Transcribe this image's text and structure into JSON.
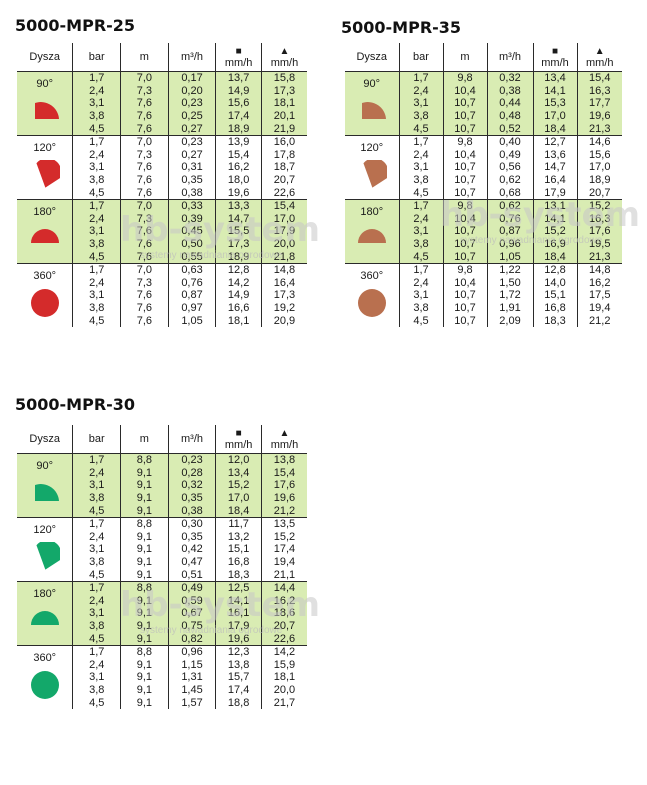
{
  "header_labels": {
    "nozzle": "Dysza",
    "pressure": "bar",
    "radius": "m",
    "flow": "m³/h",
    "square_symbol": "■",
    "triangle_symbol": "▲",
    "precip_unit": "mm/h"
  },
  "watermark": {
    "logo": "hb-system",
    "subtitle": "systemy nawadniania ogrodowe"
  },
  "colors": {
    "green_row": "#d9ecb3",
    "red_nozzle": "#d42b2b",
    "brown_nozzle": "#b9704f",
    "green_nozzle": "#13a86a"
  },
  "tables": [
    {
      "title": "5000-MPR-25",
      "nozzle_color": "#d42b2b",
      "groups": [
        {
          "nozzle": "90°",
          "shape": "quarter",
          "rows": [
            [
              "1,7",
              "7,0",
              "0,17",
              "13,7",
              "15,8"
            ],
            [
              "2,4",
              "7,3",
              "0,20",
              "14,9",
              "17,3"
            ],
            [
              "3,1",
              "7,6",
              "0,23",
              "15,6",
              "18,1"
            ],
            [
              "3,8",
              "7,6",
              "0,25",
              "17,4",
              "20,1"
            ],
            [
              "4,5",
              "7,6",
              "0,27",
              "18,9",
              "21,9"
            ]
          ]
        },
        {
          "nozzle": "120°",
          "shape": "third",
          "rows": [
            [
              "1,7",
              "7,0",
              "0,23",
              "13,9",
              "16,0"
            ],
            [
              "2,4",
              "7,3",
              "0,27",
              "15,4",
              "17,8"
            ],
            [
              "3,1",
              "7,6",
              "0,31",
              "16,2",
              "18,7"
            ],
            [
              "3,8",
              "7,6",
              "0,35",
              "18,0",
              "20,7"
            ],
            [
              "4,5",
              "7,6",
              "0,38",
              "19,6",
              "22,6"
            ]
          ]
        },
        {
          "nozzle": "180°",
          "shape": "half",
          "rows": [
            [
              "1,7",
              "7,0",
              "0,33",
              "13,3",
              "15,4"
            ],
            [
              "2,4",
              "7,3",
              "0,39",
              "14,7",
              "17,0"
            ],
            [
              "3,1",
              "7,6",
              "0,45",
              "15,5",
              "17,9"
            ],
            [
              "3,8",
              "7,6",
              "0,50",
              "17,3",
              "20,0"
            ],
            [
              "4,5",
              "7,6",
              "0,55",
              "18,9",
              "21,8"
            ]
          ]
        },
        {
          "nozzle": "360°",
          "shape": "full",
          "rows": [
            [
              "1,7",
              "7,0",
              "0,63",
              "12,8",
              "14,8"
            ],
            [
              "2,4",
              "7,3",
              "0,76",
              "14,2",
              "16,4"
            ],
            [
              "3,1",
              "7,6",
              "0,87",
              "14,9",
              "17,3"
            ],
            [
              "3,8",
              "7,6",
              "0,97",
              "16,6",
              "19,2"
            ],
            [
              "4,5",
              "7,6",
              "1,05",
              "18,1",
              "20,9"
            ]
          ]
        }
      ]
    },
    {
      "title": "5000-MPR-35",
      "nozzle_color": "#b9704f",
      "groups": [
        {
          "nozzle": "90°",
          "shape": "quarter",
          "rows": [
            [
              "1,7",
              "9,8",
              "0,32",
              "13,4",
              "15,4"
            ],
            [
              "2,4",
              "10,4",
              "0,38",
              "14,1",
              "16,3"
            ],
            [
              "3,1",
              "10,7",
              "0,44",
              "15,3",
              "17,7"
            ],
            [
              "3,8",
              "10,7",
              "0,48",
              "17,0",
              "19,6"
            ],
            [
              "4,5",
              "10,7",
              "0,52",
              "18,4",
              "21,3"
            ]
          ]
        },
        {
          "nozzle": "120°",
          "shape": "third",
          "rows": [
            [
              "1,7",
              "9,8",
              "0,40",
              "12,7",
              "14,6"
            ],
            [
              "2,4",
              "10,4",
              "0,49",
              "13,6",
              "15,6"
            ],
            [
              "3,1",
              "10,7",
              "0,56",
              "14,7",
              "17,0"
            ],
            [
              "3,8",
              "10,7",
              "0,62",
              "16,4",
              "18,9"
            ],
            [
              "4,5",
              "10,7",
              "0,68",
              "17,9",
              "20,7"
            ]
          ]
        },
        {
          "nozzle": "180°",
          "shape": "half",
          "rows": [
            [
              "1,7",
              "9,8",
              "0,62",
              "13,1",
              "15,2"
            ],
            [
              "2,4",
              "10,4",
              "0,76",
              "14,1",
              "16,3"
            ],
            [
              "3,1",
              "10,7",
              "0,87",
              "15,2",
              "17,6"
            ],
            [
              "3,8",
              "10,7",
              "0,96",
              "16,9",
              "19,5"
            ],
            [
              "4,5",
              "10,7",
              "1,05",
              "18,4",
              "21,3"
            ]
          ]
        },
        {
          "nozzle": "360°",
          "shape": "full",
          "rows": [
            [
              "1,7",
              "9,8",
              "1,22",
              "12,8",
              "14,8"
            ],
            [
              "2,4",
              "10,4",
              "1,50",
              "14,0",
              "16,2"
            ],
            [
              "3,1",
              "10,7",
              "1,72",
              "15,1",
              "17,5"
            ],
            [
              "3,8",
              "10,7",
              "1,91",
              "16,8",
              "19,4"
            ],
            [
              "4,5",
              "10,7",
              "2,09",
              "18,3",
              "21,2"
            ]
          ]
        }
      ]
    },
    {
      "title": "5000-MPR-30",
      "nozzle_color": "#13a86a",
      "groups": [
        {
          "nozzle": "90°",
          "shape": "quarter",
          "rows": [
            [
              "1,7",
              "8,8",
              "0,23",
              "12,0",
              "13,8"
            ],
            [
              "2,4",
              "9,1",
              "0,28",
              "13,4",
              "15,4"
            ],
            [
              "3,1",
              "9,1",
              "0,32",
              "15,2",
              "17,6"
            ],
            [
              "3,8",
              "9,1",
              "0,35",
              "17,0",
              "19,6"
            ],
            [
              "4,5",
              "9,1",
              "0,38",
              "18,4",
              "21,2"
            ]
          ]
        },
        {
          "nozzle": "120°",
          "shape": "third",
          "rows": [
            [
              "1,7",
              "8,8",
              "0,30",
              "11,7",
              "13,5"
            ],
            [
              "2,4",
              "9,1",
              "0,35",
              "13,2",
              "15,2"
            ],
            [
              "3,1",
              "9,1",
              "0,42",
              "15,1",
              "17,4"
            ],
            [
              "3,8",
              "9,1",
              "0,47",
              "16,8",
              "19,4"
            ],
            [
              "4,5",
              "9,1",
              "0,51",
              "18,3",
              "21,1"
            ]
          ]
        },
        {
          "nozzle": "180°",
          "shape": "half",
          "rows": [
            [
              "1,7",
              "8,8",
              "0,49",
              "12,5",
              "14,4"
            ],
            [
              "2,4",
              "9,1",
              "0,59",
              "14,1",
              "16,2"
            ],
            [
              "3,1",
              "9,1",
              "0,67",
              "16,1",
              "18,6"
            ],
            [
              "3,8",
              "9,1",
              "0,75",
              "17,9",
              "20,7"
            ],
            [
              "4,5",
              "9,1",
              "0,82",
              "19,6",
              "22,6"
            ]
          ]
        },
        {
          "nozzle": "360°",
          "shape": "full",
          "rows": [
            [
              "1,7",
              "8,8",
              "0,96",
              "12,3",
              "14,2"
            ],
            [
              "2,4",
              "9,1",
              "1,15",
              "13,8",
              "15,9"
            ],
            [
              "3,1",
              "9,1",
              "1,31",
              "15,7",
              "18,1"
            ],
            [
              "3,8",
              "9,1",
              "1,45",
              "17,4",
              "20,0"
            ],
            [
              "4,5",
              "9,1",
              "1,57",
              "18,8",
              "21,7"
            ]
          ]
        }
      ]
    }
  ]
}
